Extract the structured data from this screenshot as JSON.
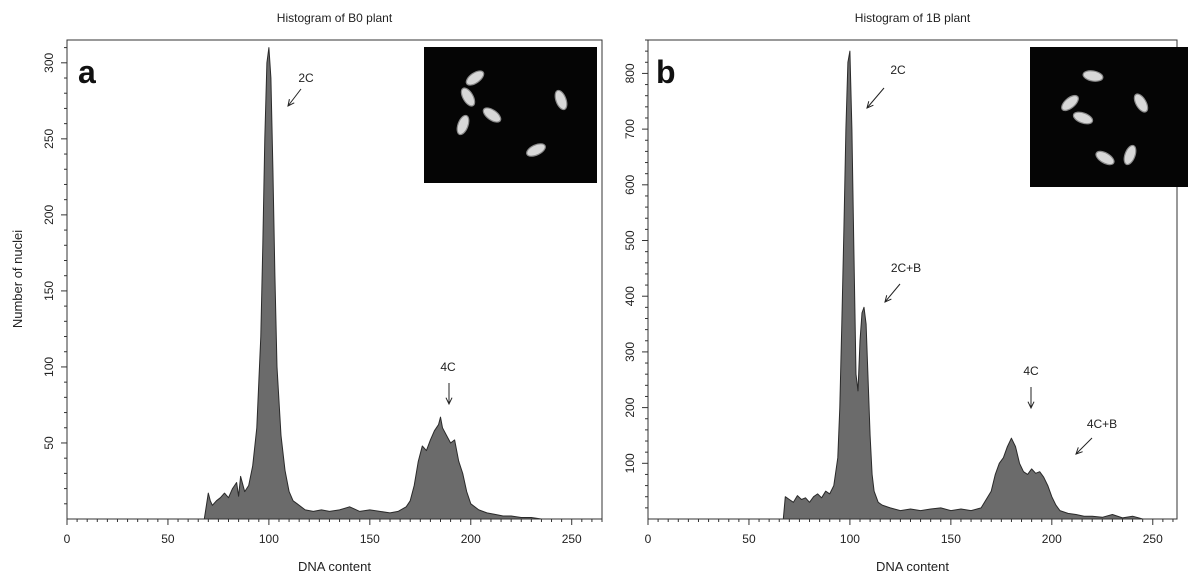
{
  "chart_data": [
    {
      "type": "area",
      "panel_letter": "a",
      "title": "Histogram of B0 plant",
      "xlabel": "DNA content",
      "ylabel": "Number of nuclei",
      "xlim": [
        0,
        265
      ],
      "ylim": [
        0,
        315
      ],
      "xticks": [
        0,
        50,
        100,
        150,
        200,
        250
      ],
      "yticks": [
        50,
        100,
        150,
        200,
        250,
        300
      ],
      "grid": false,
      "fill_color": "#6b6b6b",
      "x": [
        68,
        70,
        71,
        72,
        74,
        76,
        78,
        80,
        82,
        84,
        85,
        86,
        88,
        90,
        92,
        94,
        96,
        97,
        98,
        99,
        100,
        101,
        102,
        103,
        104,
        106,
        108,
        110,
        112,
        114,
        118,
        122,
        126,
        130,
        135,
        140,
        145,
        150,
        155,
        160,
        164,
        168,
        170,
        172,
        174,
        176,
        178,
        180,
        182,
        184,
        185,
        186,
        188,
        190,
        192,
        194,
        196,
        198,
        200,
        204,
        208,
        212,
        216,
        220,
        225,
        230,
        235,
        240
      ],
      "y": [
        0,
        17,
        12,
        9,
        12,
        14,
        17,
        14,
        20,
        24,
        15,
        28,
        18,
        22,
        35,
        60,
        120,
        180,
        250,
        300,
        310,
        290,
        230,
        160,
        100,
        55,
        32,
        18,
        12,
        10,
        6,
        5,
        6,
        5,
        6,
        8,
        5,
        6,
        5,
        4,
        5,
        8,
        12,
        22,
        38,
        48,
        45,
        52,
        58,
        62,
        67,
        60,
        55,
        50,
        52,
        38,
        30,
        18,
        10,
        6,
        4,
        3,
        2,
        2,
        1,
        1,
        0,
        0
      ],
      "annotations": [
        {
          "label": "2C",
          "x": 100,
          "y": 310
        },
        {
          "label": "4C",
          "x": 186,
          "y": 67
        }
      ]
    },
    {
      "type": "area",
      "panel_letter": "b",
      "title": "Histogram of 1B plant",
      "xlabel": "DNA content",
      "ylabel": "",
      "xlim": [
        0,
        262
      ],
      "ylim": [
        0,
        860
      ],
      "xticks": [
        0,
        50,
        100,
        150,
        200,
        250
      ],
      "yticks": [
        100,
        200,
        300,
        400,
        500,
        600,
        700,
        800
      ],
      "grid": false,
      "fill_color": "#6b6b6b",
      "x": [
        67,
        68,
        70,
        72,
        74,
        76,
        78,
        80,
        82,
        84,
        86,
        88,
        90,
        92,
        94,
        95,
        96,
        97,
        98,
        99,
        100,
        101,
        102,
        103,
        104,
        105,
        106,
        107,
        108,
        109,
        110,
        111,
        112,
        114,
        116,
        120,
        125,
        130,
        135,
        140,
        145,
        150,
        155,
        160,
        165,
        170,
        172,
        174,
        176,
        178,
        180,
        182,
        184,
        186,
        188,
        190,
        192,
        194,
        196,
        198,
        200,
        202,
        204,
        208,
        212,
        216,
        220,
        225,
        230,
        235,
        240,
        245
      ],
      "y": [
        0,
        40,
        35,
        30,
        42,
        35,
        38,
        30,
        40,
        45,
        38,
        50,
        45,
        60,
        110,
        200,
        350,
        520,
        700,
        820,
        840,
        700,
        480,
        260,
        230,
        320,
        370,
        380,
        350,
        250,
        150,
        80,
        50,
        30,
        25,
        20,
        15,
        18,
        15,
        18,
        20,
        15,
        18,
        15,
        20,
        50,
        80,
        100,
        110,
        130,
        145,
        130,
        100,
        85,
        80,
        90,
        82,
        85,
        75,
        60,
        40,
        25,
        15,
        10,
        8,
        5,
        5,
        3,
        8,
        2,
        5,
        0
      ],
      "annotations": [
        {
          "label": "2C",
          "x": 100,
          "y": 840
        },
        {
          "label": "2C+B",
          "x": 108,
          "y": 380
        },
        {
          "label": "4C",
          "x": 180,
          "y": 145
        },
        {
          "label": "4C+B",
          "x": 198,
          "y": 85
        }
      ]
    }
  ]
}
